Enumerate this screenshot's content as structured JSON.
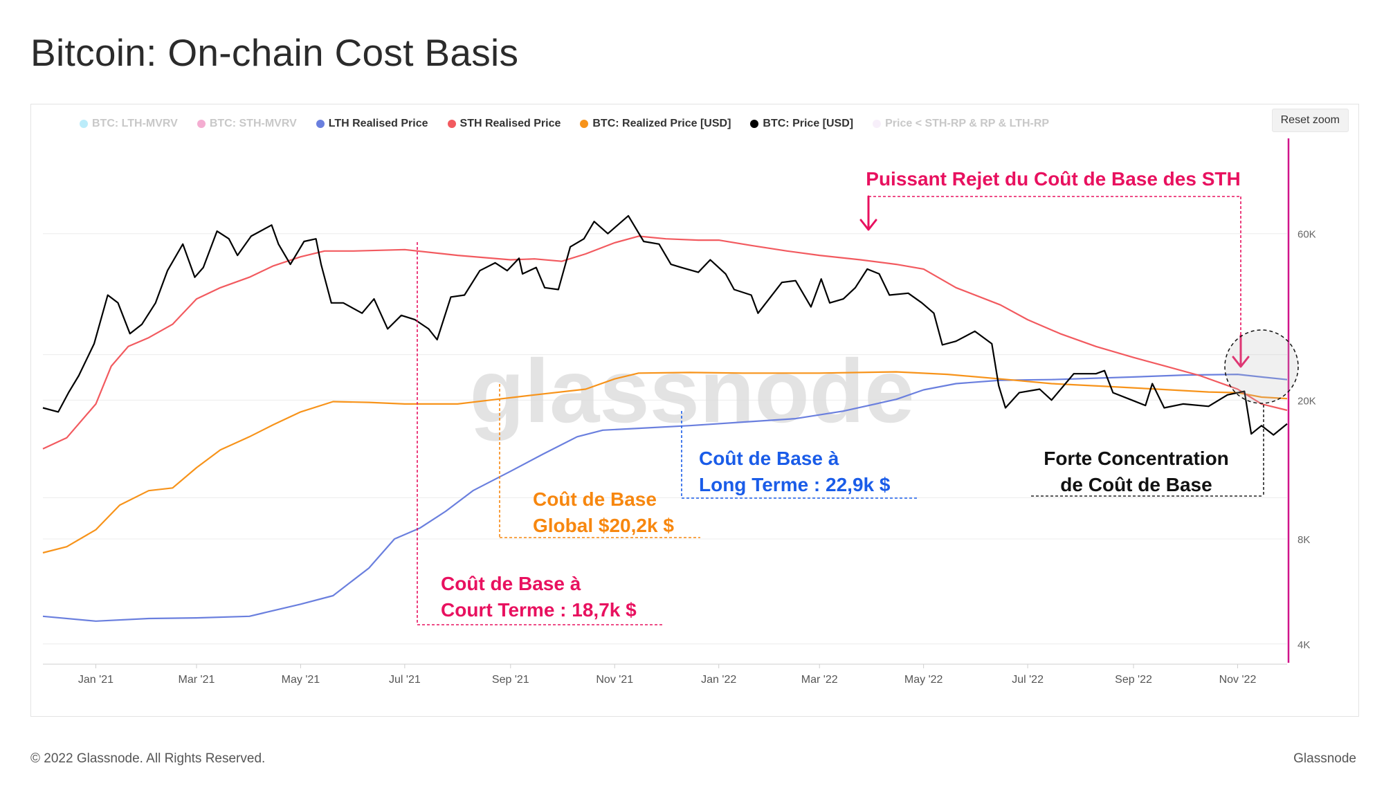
{
  "page": {
    "title": "Bitcoin: On-chain Cost Basis",
    "footer_left": "© 2022 Glassnode. All Rights Reserved.",
    "footer_right": "Glassnode",
    "watermark": "glassnode",
    "reset_zoom_label": "Reset zoom"
  },
  "legend": [
    {
      "label": "BTC: LTH-MVRV",
      "color": "#3dc8f0",
      "active": false
    },
    {
      "label": "BTC: STH-MVRV",
      "color": "#e0147c",
      "active": false
    },
    {
      "label": "LTH Realised Price",
      "color": "#6a7fde",
      "active": true
    },
    {
      "label": "STH Realised Price",
      "color": "#f25a5f",
      "active": true
    },
    {
      "label": "BTC: Realized Price [USD]",
      "color": "#f7931a",
      "active": true
    },
    {
      "label": "BTC: Price [USD]",
      "color": "#000000",
      "active": true
    },
    {
      "label": "Price < STH-RP & RP & LTH-RP",
      "color": "#e8d0f0",
      "active": false
    }
  ],
  "annotations": {
    "sth_rejection": "Puissant Rejet du Coût de Base des STH",
    "lth_line1": "Coût de Base à",
    "lth_line2": "Long Terme : 22,9k $",
    "global_line1": "Coût de Base",
    "global_line2": "Global  $20,2k $",
    "sth_line1": "Coût de Base à",
    "sth_line2": "Court Terme : 18,7k $",
    "conc_line1": "Forte Concentration",
    "conc_line2": "de Coût de Base"
  },
  "colors": {
    "lth": "#6a7fde",
    "sth": "#f25a5f",
    "realized": "#f7931a",
    "price": "#000000",
    "pink": "#e8115f",
    "blue": "#1a5ce8",
    "orange": "#f7870f",
    "axis_line": "#d0148a"
  },
  "chart_data": {
    "type": "line",
    "title": "Bitcoin: On-chain Cost Basis",
    "xlabel": "",
    "ylabel": "",
    "yscale": "log",
    "ylim": [
      3500,
      110000
    ],
    "x_range": [
      "2020-12-01",
      "2022-11-30"
    ],
    "x_ticks": [
      "Jan '21",
      "Mar '21",
      "May '21",
      "Jul '21",
      "Sep '21",
      "Nov '21",
      "Jan '22",
      "Mar '22",
      "May '22",
      "Jul '22",
      "Sep '22",
      "Nov '22"
    ],
    "y_ticks": [
      {
        "label": "4K",
        "value": 4000
      },
      {
        "label": "8K",
        "value": 8000
      },
      {
        "label": "20K",
        "value": 20000
      },
      {
        "label": "60K",
        "value": 60000
      }
    ],
    "series": [
      {
        "name": "BTC: Price [USD]",
        "color": "#000000",
        "points": [
          [
            "2020-12-01",
            19000
          ],
          [
            "2020-12-10",
            18500
          ],
          [
            "2020-12-16",
            21000
          ],
          [
            "2020-12-22",
            23500
          ],
          [
            "2020-12-31",
            29000
          ],
          [
            "2021-01-08",
            40000
          ],
          [
            "2021-01-14",
            38000
          ],
          [
            "2021-01-21",
            31000
          ],
          [
            "2021-01-28",
            33000
          ],
          [
            "2021-02-05",
            38000
          ],
          [
            "2021-02-12",
            47000
          ],
          [
            "2021-02-21",
            56000
          ],
          [
            "2021-02-28",
            45000
          ],
          [
            "2021-03-05",
            48000
          ],
          [
            "2021-03-13",
            61000
          ],
          [
            "2021-03-20",
            58000
          ],
          [
            "2021-03-25",
            52000
          ],
          [
            "2021-04-02",
            59000
          ],
          [
            "2021-04-14",
            63500
          ],
          [
            "2021-04-18",
            56000
          ],
          [
            "2021-04-25",
            49000
          ],
          [
            "2021-05-03",
            57000
          ],
          [
            "2021-05-10",
            58000
          ],
          [
            "2021-05-13",
            49000
          ],
          [
            "2021-05-19",
            38000
          ],
          [
            "2021-05-26",
            38000
          ],
          [
            "2021-06-06",
            35500
          ],
          [
            "2021-06-13",
            39000
          ],
          [
            "2021-06-21",
            32000
          ],
          [
            "2021-06-29",
            35000
          ],
          [
            "2021-07-07",
            34000
          ],
          [
            "2021-07-15",
            32000
          ],
          [
            "2021-07-20",
            29800
          ],
          [
            "2021-07-28",
            39500
          ],
          [
            "2021-08-05",
            40000
          ],
          [
            "2021-08-14",
            47000
          ],
          [
            "2021-08-23",
            49500
          ],
          [
            "2021-08-30",
            47000
          ],
          [
            "2021-09-06",
            51000
          ],
          [
            "2021-09-08",
            46000
          ],
          [
            "2021-09-16",
            48000
          ],
          [
            "2021-09-21",
            42000
          ],
          [
            "2021-09-29",
            41500
          ],
          [
            "2021-10-06",
            55000
          ],
          [
            "2021-10-14",
            58000
          ],
          [
            "2021-10-20",
            65000
          ],
          [
            "2021-10-28",
            60000
          ],
          [
            "2021-11-09",
            67500
          ],
          [
            "2021-11-18",
            57000
          ],
          [
            "2021-11-27",
            56000
          ],
          [
            "2021-12-04",
            49000
          ],
          [
            "2021-12-10",
            48000
          ],
          [
            "2021-12-20",
            46500
          ],
          [
            "2021-12-27",
            50500
          ],
          [
            "2022-01-05",
            46000
          ],
          [
            "2022-01-10",
            41500
          ],
          [
            "2022-01-20",
            40000
          ],
          [
            "2022-01-24",
            35500
          ],
          [
            "2022-02-07",
            43500
          ],
          [
            "2022-02-15",
            44000
          ],
          [
            "2022-02-24",
            37000
          ],
          [
            "2022-03-02",
            44500
          ],
          [
            "2022-03-07",
            38000
          ],
          [
            "2022-03-15",
            39000
          ],
          [
            "2022-03-22",
            42000
          ],
          [
            "2022-03-29",
            47500
          ],
          [
            "2022-04-05",
            46000
          ],
          [
            "2022-04-11",
            40000
          ],
          [
            "2022-04-22",
            40500
          ],
          [
            "2022-04-30",
            38000
          ],
          [
            "2022-05-07",
            35500
          ],
          [
            "2022-05-12",
            28800
          ],
          [
            "2022-05-20",
            29500
          ],
          [
            "2022-05-31",
            31500
          ],
          [
            "2022-06-10",
            29000
          ],
          [
            "2022-06-14",
            22000
          ],
          [
            "2022-06-18",
            19000
          ],
          [
            "2022-06-26",
            21000
          ],
          [
            "2022-07-08",
            21500
          ],
          [
            "2022-07-15",
            20000
          ],
          [
            "2022-07-28",
            23800
          ],
          [
            "2022-08-10",
            23800
          ],
          [
            "2022-08-15",
            24300
          ],
          [
            "2022-08-20",
            21000
          ],
          [
            "2022-08-31",
            20000
          ],
          [
            "2022-09-08",
            19300
          ],
          [
            "2022-09-12",
            22300
          ],
          [
            "2022-09-19",
            19000
          ],
          [
            "2022-09-30",
            19500
          ],
          [
            "2022-10-15",
            19200
          ],
          [
            "2022-10-26",
            20700
          ],
          [
            "2022-11-05",
            21200
          ],
          [
            "2022-11-09",
            16000
          ],
          [
            "2022-11-15",
            16900
          ],
          [
            "2022-11-22",
            15900
          ],
          [
            "2022-11-30",
            17100
          ]
        ]
      },
      {
        "name": "STH Realised Price",
        "color": "#f25a5f",
        "points": [
          [
            "2020-12-01",
            14500
          ],
          [
            "2020-12-15",
            15600
          ],
          [
            "2021-01-01",
            19500
          ],
          [
            "2021-01-10",
            25000
          ],
          [
            "2021-01-20",
            28500
          ],
          [
            "2021-02-01",
            30200
          ],
          [
            "2021-02-15",
            33000
          ],
          [
            "2021-03-01",
            39000
          ],
          [
            "2021-03-15",
            42000
          ],
          [
            "2021-04-01",
            45000
          ],
          [
            "2021-04-15",
            48500
          ],
          [
            "2021-05-01",
            51500
          ],
          [
            "2021-05-15",
            53500
          ],
          [
            "2021-06-01",
            53500
          ],
          [
            "2021-07-01",
            54000
          ],
          [
            "2021-08-01",
            52000
          ],
          [
            "2021-09-01",
            50500
          ],
          [
            "2021-09-15",
            50800
          ],
          [
            "2021-10-01",
            50000
          ],
          [
            "2021-10-15",
            52500
          ],
          [
            "2021-11-01",
            56500
          ],
          [
            "2021-11-15",
            59000
          ],
          [
            "2021-12-01",
            58000
          ],
          [
            "2021-12-20",
            57500
          ],
          [
            "2022-01-01",
            57500
          ],
          [
            "2022-01-20",
            55500
          ],
          [
            "2022-02-10",
            53500
          ],
          [
            "2022-03-01",
            52000
          ],
          [
            "2022-03-25",
            50500
          ],
          [
            "2022-04-15",
            49000
          ],
          [
            "2022-05-01",
            47500
          ],
          [
            "2022-05-20",
            42000
          ],
          [
            "2022-06-15",
            37500
          ],
          [
            "2022-07-01",
            34000
          ],
          [
            "2022-07-20",
            31000
          ],
          [
            "2022-08-10",
            28500
          ],
          [
            "2022-09-01",
            26500
          ],
          [
            "2022-09-20",
            25000
          ],
          [
            "2022-10-10",
            23500
          ],
          [
            "2022-11-01",
            21500
          ],
          [
            "2022-11-15",
            19500
          ],
          [
            "2022-11-30",
            18700
          ]
        ]
      },
      {
        "name": "BTC: Realized Price [USD]",
        "color": "#f7931a",
        "points": [
          [
            "2020-12-01",
            7300
          ],
          [
            "2020-12-15",
            7600
          ],
          [
            "2021-01-01",
            8500
          ],
          [
            "2021-01-15",
            10000
          ],
          [
            "2021-02-01",
            11000
          ],
          [
            "2021-02-15",
            11200
          ],
          [
            "2021-03-01",
            12800
          ],
          [
            "2021-03-15",
            14400
          ],
          [
            "2021-04-01",
            15700
          ],
          [
            "2021-04-15",
            17000
          ],
          [
            "2021-05-01",
            18500
          ],
          [
            "2021-05-20",
            19800
          ],
          [
            "2021-06-10",
            19700
          ],
          [
            "2021-07-01",
            19500
          ],
          [
            "2021-08-01",
            19500
          ],
          [
            "2021-08-20",
            20000
          ],
          [
            "2021-09-15",
            20700
          ],
          [
            "2021-10-15",
            21500
          ],
          [
            "2021-11-01",
            23000
          ],
          [
            "2021-11-15",
            23900
          ],
          [
            "2021-12-15",
            24000
          ],
          [
            "2022-01-15",
            23900
          ],
          [
            "2022-03-01",
            23900
          ],
          [
            "2022-04-15",
            24100
          ],
          [
            "2022-05-15",
            23700
          ],
          [
            "2022-06-15",
            23000
          ],
          [
            "2022-07-15",
            22300
          ],
          [
            "2022-08-15",
            21900
          ],
          [
            "2022-09-15",
            21500
          ],
          [
            "2022-10-15",
            21100
          ],
          [
            "2022-11-01",
            21000
          ],
          [
            "2022-11-15",
            20400
          ],
          [
            "2022-11-30",
            20200
          ]
        ]
      },
      {
        "name": "LTH Realised Price",
        "color": "#6a7fde",
        "points": [
          [
            "2020-12-01",
            4800
          ],
          [
            "2021-01-01",
            4650
          ],
          [
            "2021-02-01",
            4730
          ],
          [
            "2021-03-01",
            4750
          ],
          [
            "2021-04-01",
            4800
          ],
          [
            "2021-05-01",
            5200
          ],
          [
            "2021-05-20",
            5500
          ],
          [
            "2021-06-10",
            6600
          ],
          [
            "2021-06-25",
            8000
          ],
          [
            "2021-07-10",
            8600
          ],
          [
            "2021-07-25",
            9600
          ],
          [
            "2021-08-10",
            11000
          ],
          [
            "2021-09-01",
            12500
          ],
          [
            "2021-09-20",
            14000
          ],
          [
            "2021-10-10",
            15700
          ],
          [
            "2021-10-25",
            16400
          ],
          [
            "2021-11-15",
            16600
          ],
          [
            "2021-12-15",
            16900
          ],
          [
            "2022-01-15",
            17300
          ],
          [
            "2022-02-15",
            17700
          ],
          [
            "2022-03-15",
            18600
          ],
          [
            "2022-04-15",
            20100
          ],
          [
            "2022-05-01",
            21400
          ],
          [
            "2022-05-20",
            22300
          ],
          [
            "2022-06-15",
            22800
          ],
          [
            "2022-07-15",
            22900
          ],
          [
            "2022-09-01",
            23300
          ],
          [
            "2022-10-01",
            23600
          ],
          [
            "2022-11-01",
            23700
          ],
          [
            "2022-11-15",
            23300
          ],
          [
            "2022-11-30",
            22900
          ]
        ]
      }
    ]
  }
}
